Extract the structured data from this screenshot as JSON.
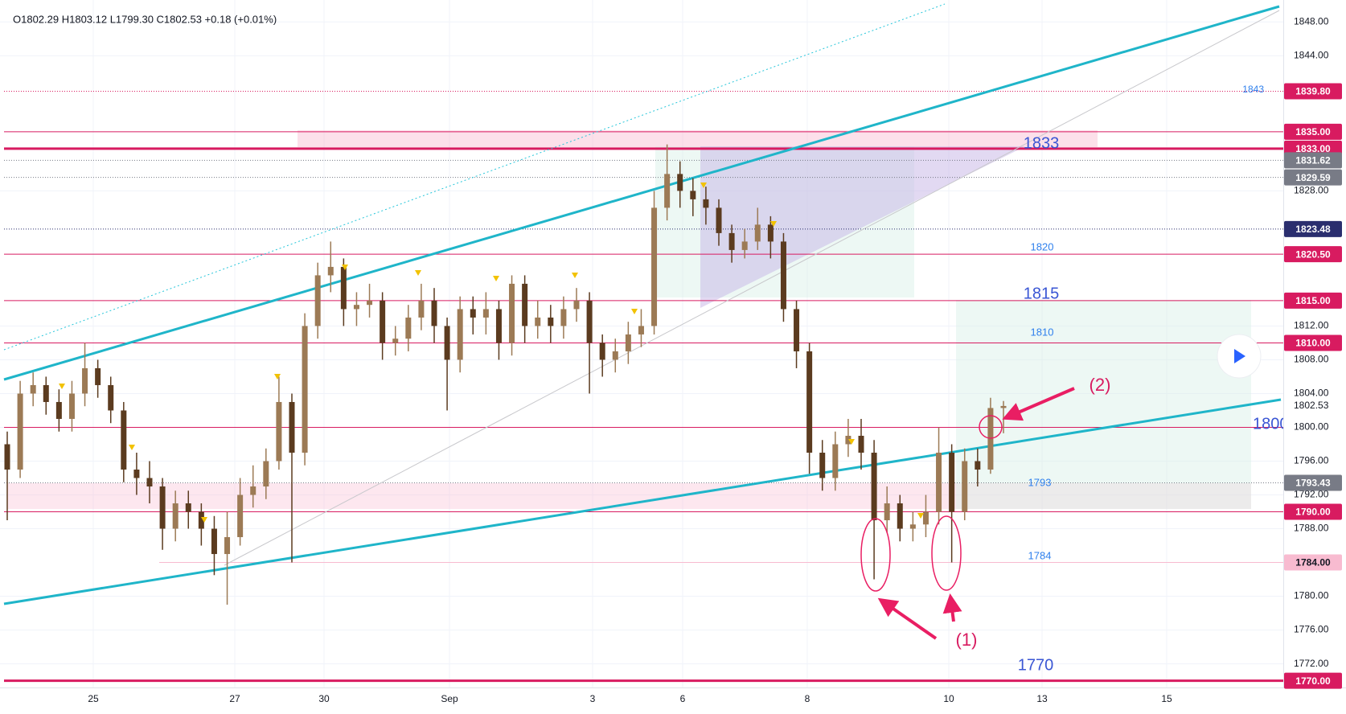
{
  "chart_data": {
    "type": "candlestick",
    "ohlc_header": "O1802.29 H1803.12 L1799.30 C1802.53 +0.18 (+0.01%)",
    "up_color": "#9c7a55",
    "down_color": "#5b3b1f",
    "grid": true,
    "ylim": [
      1769.2,
      1850.6
    ],
    "yticks": [
      {
        "value": 1848,
        "label": "1848.00"
      },
      {
        "value": 1844,
        "label": "1844.00"
      },
      {
        "value": 1828,
        "label": "1828.00"
      },
      {
        "value": 1812,
        "label": "1812.00"
      },
      {
        "value": 1808,
        "label": "1808.00"
      },
      {
        "value": 1804,
        "label": "1804.00"
      },
      {
        "value": 1800,
        "label": "1800.00"
      },
      {
        "value": 1796,
        "label": "1796.00"
      },
      {
        "value": 1792,
        "label": "1792.00"
      },
      {
        "value": 1788,
        "label": "1788.00"
      },
      {
        "value": 1780,
        "label": "1780.00"
      },
      {
        "value": 1776,
        "label": "1776.00"
      },
      {
        "value": 1772,
        "label": "1772.00"
      }
    ],
    "xticks": [
      "25",
      "27",
      "30",
      "Sep",
      "3",
      "6",
      "8",
      "10",
      "13",
      "15"
    ],
    "candles": {
      "open": [
        1798,
        1795,
        1804,
        1805,
        1803,
        1801,
        1804,
        1807,
        1805,
        1802,
        1795,
        1794,
        1793,
        1788,
        1791,
        1790,
        1788,
        1785,
        1787,
        1792,
        1793,
        1796,
        1803,
        1797,
        1812,
        1818,
        1819,
        1814,
        1814.5,
        1815,
        1810,
        1810.5,
        1813,
        1815,
        1812,
        1808,
        1814,
        1813,
        1814,
        1810,
        1817,
        1812,
        1813,
        1812,
        1814,
        1815,
        1810,
        1808,
        1809,
        1811,
        1812,
        1826,
        1830,
        1828,
        1827,
        1826,
        1823,
        1821,
        1822,
        1824,
        1822,
        1814,
        1809,
        1797,
        1794,
        1798,
        1799,
        1797,
        1789,
        1791,
        1788,
        1788.5,
        1790,
        1797,
        1790,
        1796,
        1795,
        1802.29
      ],
      "high": [
        1799.5,
        1805.5,
        1806.5,
        1806,
        1804.5,
        1805.5,
        1810,
        1808,
        1806,
        1803,
        1797,
        1796,
        1794,
        1792.5,
        1792.5,
        1791,
        1789.5,
        1790,
        1794,
        1795.5,
        1797.5,
        1806,
        1804,
        1813.5,
        1819.5,
        1822,
        1820,
        1816,
        1817,
        1816,
        1812,
        1814.5,
        1817,
        1816.5,
        1813,
        1815.5,
        1815.5,
        1816,
        1815,
        1818,
        1818,
        1815,
        1814.5,
        1815.5,
        1816.5,
        1816,
        1811,
        1810.5,
        1812.5,
        1814,
        1828,
        1833.5,
        1831.5,
        1829.5,
        1828.5,
        1827,
        1824,
        1823.5,
        1826,
        1825,
        1823,
        1815,
        1810,
        1798.5,
        1799.5,
        1801,
        1801,
        1798.5,
        1793,
        1792,
        1790,
        1792,
        1800,
        1798,
        1797.5,
        1797.5,
        1803.5,
        1803.12
      ],
      "low": [
        1789,
        1794,
        1802.5,
        1801.5,
        1799.5,
        1799.5,
        1802.5,
        1803.5,
        1800.5,
        1793.5,
        1792,
        1791,
        1785.5,
        1786.5,
        1788,
        1786,
        1782.5,
        1779,
        1786,
        1790.5,
        1791.5,
        1795,
        1784,
        1795.5,
        1810.5,
        1816,
        1812,
        1812,
        1813,
        1808,
        1808.5,
        1809,
        1811.5,
        1810,
        1802,
        1806.5,
        1811,
        1811,
        1808,
        1808.5,
        1810,
        1810.5,
        1810,
        1810.5,
        1812.5,
        1804,
        1806,
        1806.5,
        1807.5,
        1809.5,
        1811,
        1824.5,
        1826,
        1825,
        1824,
        1821.5,
        1819.5,
        1820,
        1821,
        1820,
        1812.5,
        1807,
        1794.5,
        1792.5,
        1792.5,
        1796.5,
        1795,
        1782,
        1787.5,
        1786.5,
        1786.5,
        1787,
        1788.5,
        1784,
        1789,
        1793,
        1794.5,
        1799.3
      ],
      "close": [
        1795,
        1804,
        1805,
        1803,
        1801,
        1804,
        1807,
        1805,
        1802,
        1795,
        1794,
        1793,
        1788,
        1791,
        1790,
        1788,
        1785,
        1787,
        1792,
        1793,
        1796,
        1803,
        1797,
        1812,
        1818,
        1819,
        1814,
        1814.5,
        1815,
        1810,
        1810.5,
        1813,
        1815,
        1812,
        1808,
        1814,
        1813,
        1814,
        1810,
        1817,
        1812,
        1813,
        1812,
        1814,
        1815,
        1810,
        1808,
        1809,
        1811,
        1812,
        1826,
        1830,
        1828,
        1827,
        1826,
        1823,
        1821,
        1822,
        1824,
        1822,
        1814,
        1809,
        1797,
        1794,
        1798,
        1799,
        1797,
        1789,
        1791,
        1788,
        1788.5,
        1790,
        1797,
        1790,
        1796,
        1795,
        1802.29,
        1802.53
      ]
    },
    "price_levels": [
      {
        "value": 1839.8,
        "label": "1839.80",
        "color": "#d81b60",
        "line": "dotted"
      },
      {
        "value": 1835,
        "label": "1835.00",
        "color": "#d81b60",
        "line": "solid"
      },
      {
        "value": 1833,
        "label": "1833.00",
        "color": "#d81b60",
        "line": "thick"
      },
      {
        "value": 1831.62,
        "label": "1831.62",
        "color": "#787b86",
        "line": "dotted"
      },
      {
        "value": 1829.59,
        "label": "1829.59",
        "color": "#787b86",
        "line": "dotted"
      },
      {
        "value": 1823.48,
        "label": "1823.48",
        "color": "#2a2e6e",
        "line": "dotted"
      },
      {
        "value": 1820.5,
        "label": "1820.50",
        "color": "#d81b60",
        "line": "solid"
      },
      {
        "value": 1815,
        "label": "1815.00",
        "color": "#d81b60",
        "line": "solid"
      },
      {
        "value": 1810,
        "label": "1810.00",
        "color": "#d81b60",
        "line": "solid"
      },
      {
        "value": 1800,
        "color": "#d81b60",
        "line": "solid"
      },
      {
        "value": 1793.43,
        "label": "1793.43",
        "color": "#787b86",
        "line": "dotted"
      },
      {
        "value": 1790,
        "label": "1790.00",
        "color": "#d81b60",
        "line": "solid"
      },
      {
        "value": 1784,
        "label": "1784.00",
        "color": "#f8bbd0",
        "line": "solid"
      },
      {
        "value": 1770,
        "label": "1770.00",
        "color": "#d81b60",
        "line": "thick"
      }
    ],
    "last_price": {
      "value": 1802.53,
      "label": "1802.53"
    },
    "level_notes": [
      "1843",
      "1833",
      "1820",
      "1815",
      "1810",
      "1800",
      "1793",
      "1784",
      "1770"
    ],
    "annotations": [
      "(1)",
      "(2)"
    ]
  }
}
